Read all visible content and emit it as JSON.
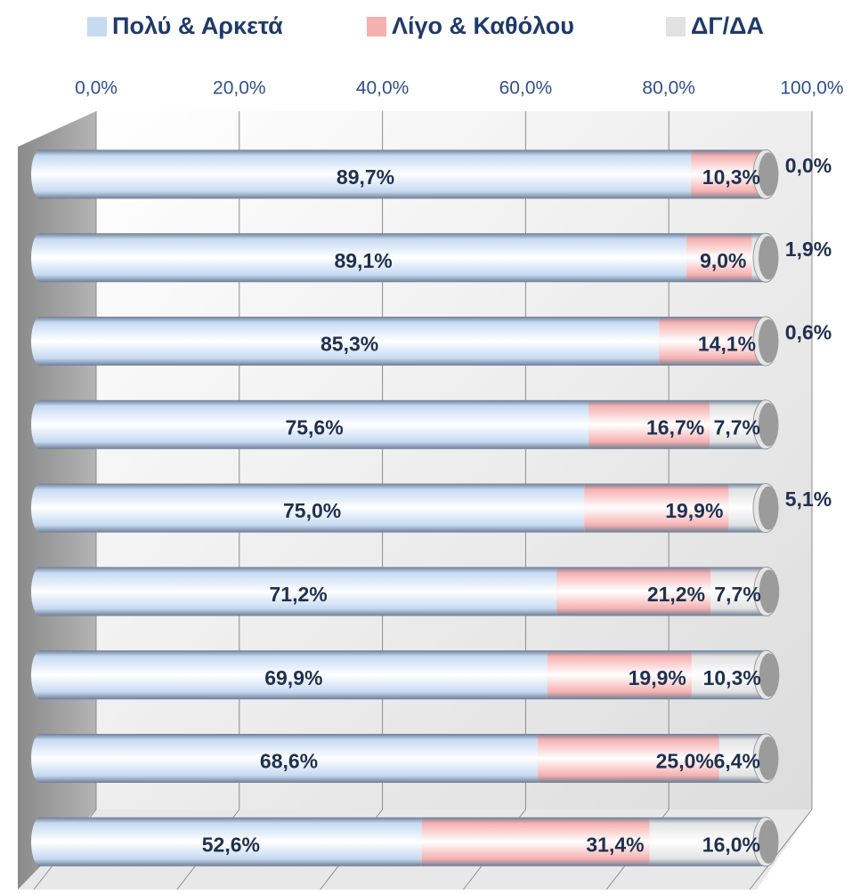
{
  "chart_data": {
    "type": "bar",
    "orientation": "horizontal",
    "stacked": true,
    "categories": [
      null,
      null,
      null,
      null,
      null,
      null,
      null,
      null,
      null
    ],
    "series": [
      {
        "name": "Πολύ & Αρκετά",
        "color": "#c6daf2",
        "values": [
          89.7,
          89.1,
          85.3,
          75.6,
          75.0,
          71.2,
          69.9,
          68.6,
          52.6
        ],
        "value_labels": [
          "89,7%",
          "89,1%",
          "85,3%",
          "75,6%",
          "75,0%",
          "71,2%",
          "69,9%",
          "68,6%",
          "52,6%"
        ]
      },
      {
        "name": "Λίγο & Καθόλου",
        "color": "#f6b0b0",
        "values": [
          10.3,
          9.0,
          14.1,
          16.7,
          19.9,
          21.2,
          19.9,
          25.0,
          31.4
        ],
        "value_labels": [
          "10,3%",
          "9,0%",
          "14,1%",
          "16,7%",
          "19,9%",
          "21,2%",
          "19,9%",
          "25,0%",
          "31,4%"
        ]
      },
      {
        "name": "ΔΓ/ΔΑ",
        "color": "#e2e2e2",
        "values": [
          0.0,
          1.9,
          0.6,
          7.7,
          5.1,
          7.7,
          10.3,
          6.4,
          16.0
        ],
        "value_labels": [
          "0,0%",
          "1,9%",
          "0,6%",
          "7,7%",
          "5,1%",
          "7,7%",
          "10,3%",
          "6,4%",
          "16,0%"
        ]
      }
    ],
    "xlim": [
      0,
      100
    ],
    "xticks": [
      {
        "value": 0,
        "label": "0,0%"
      },
      {
        "value": 20,
        "label": "20,0%"
      },
      {
        "value": 40,
        "label": "40,0%"
      },
      {
        "value": 60,
        "label": "60,0%"
      },
      {
        "value": 80,
        "label": "80,0%"
      },
      {
        "value": 100,
        "label": "100,0%"
      }
    ],
    "grid": true,
    "legend": "top"
  }
}
